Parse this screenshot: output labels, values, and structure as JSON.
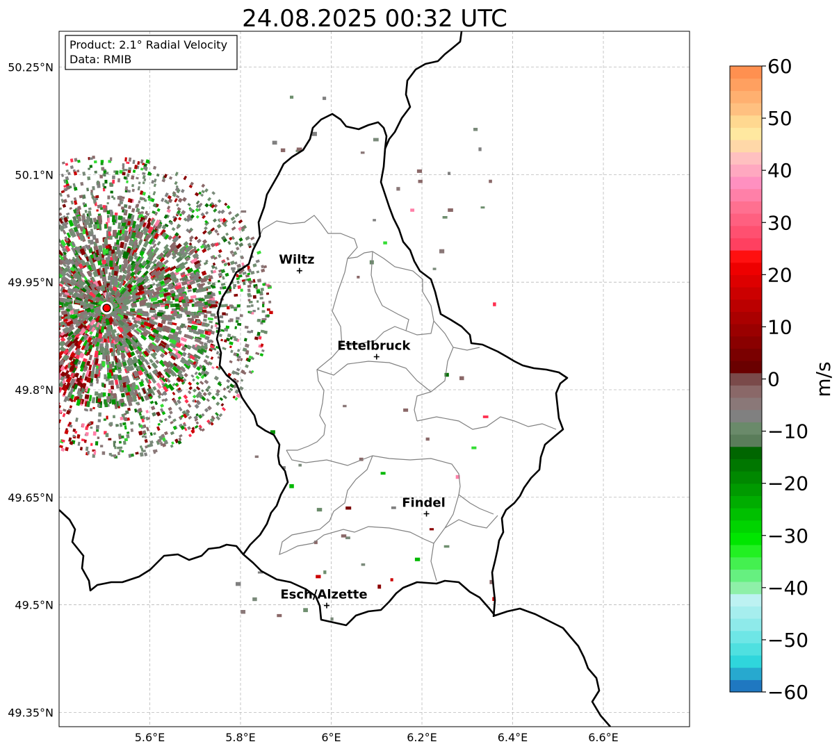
{
  "title": "24.08.2025 00:32 UTC",
  "info": {
    "product": "Product: 2.1° Radial Velocity",
    "data": "Data: RMIB"
  },
  "map": {
    "lon_range": [
      5.4,
      6.79
    ],
    "lat_range": [
      49.33,
      50.3
    ],
    "x_ticks": [
      {
        "value": 5.6,
        "label": "5.6°E"
      },
      {
        "value": 5.8,
        "label": "5.8°E"
      },
      {
        "value": 6.0,
        "label": "6°E"
      },
      {
        "value": 6.2,
        "label": "6.2°E"
      },
      {
        "value": 6.4,
        "label": "6.4°E"
      },
      {
        "value": 6.6,
        "label": "6.6°E"
      }
    ],
    "y_ticks": [
      {
        "value": 50.25,
        "label": "50.25°N"
      },
      {
        "value": 50.1,
        "label": "50.1°N"
      },
      {
        "value": 49.95,
        "label": "49.95°N"
      },
      {
        "value": 49.8,
        "label": "49.8°N"
      },
      {
        "value": 49.65,
        "label": "49.65°N"
      },
      {
        "value": 49.5,
        "label": "49.5°N"
      },
      {
        "value": 49.35,
        "label": "49.35°N"
      }
    ],
    "radar_site": {
      "lon": 5.505,
      "lat": 49.914
    },
    "cities": [
      {
        "name": "Wiltz",
        "lon": 5.93,
        "lat": 49.966
      },
      {
        "name": "Ettelbruck",
        "lon": 6.1,
        "lat": 49.846
      },
      {
        "name": "Findel",
        "lon": 6.21,
        "lat": 49.627
      },
      {
        "name": "Esch/Alzette",
        "lon": 5.99,
        "lat": 49.499
      }
    ]
  },
  "colorbar": {
    "label": "m/s",
    "min": -60,
    "max": 60,
    "ticks": [
      {
        "value": 60,
        "label": "60"
      },
      {
        "value": 50,
        "label": "50"
      },
      {
        "value": 40,
        "label": "40"
      },
      {
        "value": 30,
        "label": "30"
      },
      {
        "value": 20,
        "label": "20"
      },
      {
        "value": 10,
        "label": "10"
      },
      {
        "value": 0,
        "label": "0"
      },
      {
        "value": -10,
        "label": "−10"
      },
      {
        "value": -20,
        "label": "−20"
      },
      {
        "value": -30,
        "label": "−30"
      },
      {
        "value": -40,
        "label": "−40"
      },
      {
        "value": -50,
        "label": "−50"
      },
      {
        "value": -60,
        "label": "−60"
      }
    ],
    "colors": [
      "#1f78c1",
      "#27a9cf",
      "#2fd6dc",
      "#4fe0e0",
      "#6ee6e6",
      "#8eeaea",
      "#a6eeee",
      "#bdf2f2",
      "#8ef0a8",
      "#66f080",
      "#44f050",
      "#22f022",
      "#00e600",
      "#00d400",
      "#00c000",
      "#00ad00",
      "#009a00",
      "#008800",
      "#007700",
      "#006600",
      "#5a7d5a",
      "#6a8a6a",
      "#808080",
      "#8a7878",
      "#8a6868",
      "#7a4a4a",
      "#6a0000",
      "#7a0000",
      "#8a0000",
      "#9a0000",
      "#aa0000",
      "#bb0000",
      "#cc0000",
      "#dd0000",
      "#ee0000",
      "#ff1010",
      "#ff4060",
      "#ff5070",
      "#ff6080",
      "#ff7090",
      "#ff80a8",
      "#ff90c0",
      "#ffa8c0",
      "#ffc0c0",
      "#ffd8a8",
      "#ffe8a0",
      "#ffd890",
      "#ffc080",
      "#ffb070",
      "#ffa060",
      "#ff9050"
    ],
    "velocity_palette": {
      "approaching": [
        "#1f8f1f",
        "#00b800",
        "#009000",
        "#33dd33",
        "#5a7d5a",
        "#6a8a6a",
        "#007000"
      ],
      "neutral": [
        "#808080",
        "#8a7878",
        "#7a8a7a",
        "#8a6868",
        "#6f8f6f"
      ],
      "receding": [
        "#8a0000",
        "#cc0000",
        "#aa0000",
        "#ff3050",
        "#ff80a8",
        "#7a0000"
      ]
    }
  }
}
